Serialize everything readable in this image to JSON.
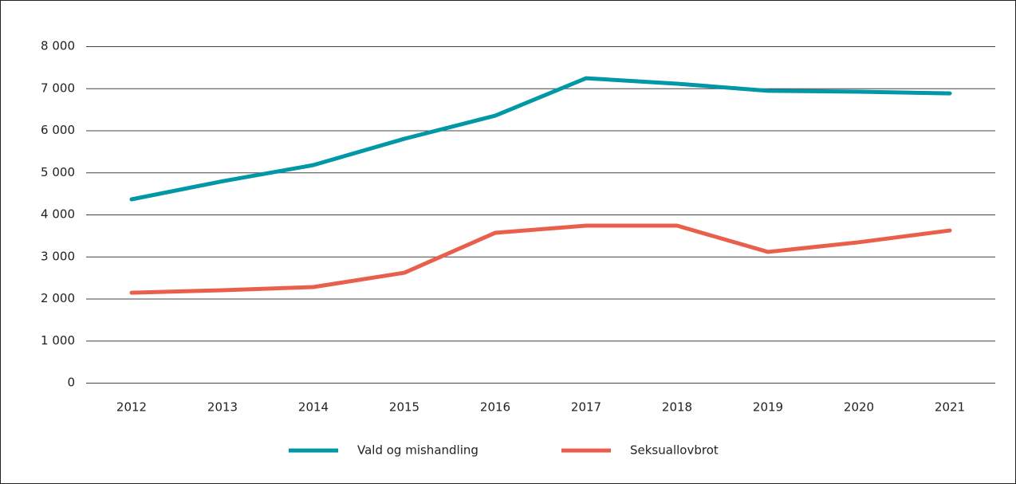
{
  "chart_data": {
    "type": "line",
    "categories": [
      "2012",
      "2013",
      "2014",
      "2015",
      "2016",
      "2017",
      "2018",
      "2019",
      "2020",
      "2021"
    ],
    "series": [
      {
        "name": "Vald og mishandling",
        "color": "#0097a7",
        "values": [
          4360,
          4790,
          5175,
          5800,
          6350,
          7240,
          7110,
          6940,
          6920,
          6880
        ]
      },
      {
        "name": "Seksuallovbrot",
        "color": "#e8604c",
        "values": [
          2140,
          2200,
          2275,
          2615,
          3565,
          3735,
          3735,
          3110,
          3340,
          3620
        ]
      }
    ],
    "ylim": [
      0,
      8000
    ],
    "yticks": [
      0,
      {
        "value": 1000,
        "label": "1 000"
      },
      {
        "value": 2000,
        "label": "2 000"
      },
      {
        "value": 3000,
        "label": "3 000"
      },
      {
        "value": 4000,
        "label": "4 000"
      },
      {
        "value": 5000,
        "label": "5 000"
      },
      {
        "value": 6000,
        "label": "6 000"
      },
      {
        "value": 7000,
        "label": "7 000"
      },
      {
        "value": 8000,
        "label": "8 000"
      }
    ],
    "grid": true,
    "legend": "bottom"
  }
}
